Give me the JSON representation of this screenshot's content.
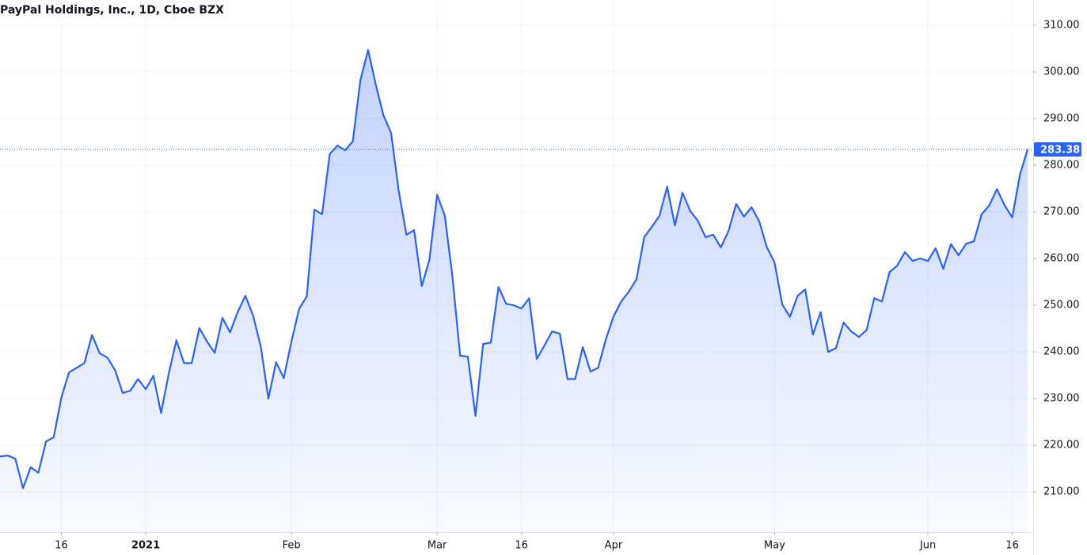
{
  "chart_data": {
    "type": "area",
    "title": "PayPal Holdings, Inc., 1D, Cboe BZX",
    "categories": [
      null,
      null,
      null,
      null,
      null,
      null,
      null,
      null,
      "16",
      null,
      null,
      null,
      null,
      null,
      null,
      null,
      null,
      null,
      null,
      "2021",
      null,
      null,
      null,
      null,
      null,
      null,
      null,
      null,
      null,
      null,
      null,
      null,
      null,
      null,
      null,
      null,
      null,
      null,
      "Feb",
      null,
      null,
      null,
      null,
      null,
      null,
      null,
      null,
      null,
      null,
      null,
      null,
      null,
      null,
      null,
      null,
      null,
      null,
      "Mar",
      null,
      null,
      null,
      null,
      null,
      null,
      null,
      null,
      null,
      null,
      "16",
      null,
      null,
      null,
      null,
      null,
      null,
      null,
      null,
      null,
      null,
      null,
      "Apr",
      null,
      null,
      null,
      null,
      null,
      null,
      null,
      null,
      null,
      null,
      null,
      null,
      null,
      null,
      null,
      null,
      null,
      null,
      null,
      null,
      "May",
      null,
      null,
      null,
      null,
      null,
      null,
      null,
      null,
      null,
      null,
      null,
      null,
      null,
      null,
      null,
      null,
      null,
      null,
      null,
      "Jun",
      null,
      null,
      null,
      null,
      null,
      null,
      null,
      null,
      null,
      null,
      "16",
      null,
      null
    ],
    "values": [
      217.6,
      217.8,
      217.1,
      210.8,
      215.3,
      214.1,
      220.8,
      221.7,
      230.2,
      235.6,
      236.6,
      237.6,
      243.6,
      239.7,
      238.8,
      236.1,
      231.2,
      231.7,
      234.2,
      232.0,
      234.9,
      226.9,
      235.3,
      242.5,
      237.6,
      237.6,
      245.1,
      242.2,
      239.8,
      247.3,
      244.2,
      248.6,
      252.0,
      247.8,
      241.2,
      230.0,
      237.8,
      234.4,
      242.2,
      249.2,
      251.9,
      270.5,
      269.5,
      282.4,
      284.2,
      283.2,
      285.1,
      298.3,
      304.7,
      297.3,
      290.7,
      286.9,
      274.4,
      265.1,
      266.1,
      254.1,
      259.8,
      273.7,
      269.2,
      256.1,
      239.2,
      239.0,
      226.3,
      241.7,
      242.0,
      253.9,
      250.3,
      250.0,
      249.3,
      251.5,
      238.5,
      241.4,
      244.4,
      243.9,
      234.2,
      234.2,
      241.0,
      235.8,
      236.6,
      242.7,
      247.6,
      250.8,
      252.9,
      255.6,
      264.6,
      266.8,
      269.2,
      275.4,
      267.1,
      274.1,
      270.2,
      268.1,
      264.6,
      265.1,
      262.4,
      265.9,
      271.7,
      269.0,
      271.0,
      268.0,
      262.4,
      259.2,
      250.2,
      247.5,
      252.0,
      253.4,
      243.7,
      248.5,
      240.0,
      240.8,
      246.3,
      244.4,
      243.2,
      244.7,
      251.5,
      250.8,
      257.1,
      258.5,
      261.4,
      259.5,
      260.0,
      259.5,
      262.2,
      257.8,
      263.1,
      260.7,
      263.2,
      263.7,
      269.5,
      271.4,
      274.9,
      271.4,
      268.8,
      278.0,
      283.38
    ],
    "color": "#2962ff",
    "ylim": [
      201.4,
      315.4
    ],
    "yticks": [
      {
        "value": 210,
        "label": "210.00"
      },
      {
        "value": 220,
        "label": "220.00"
      },
      {
        "value": 230,
        "label": "230.00"
      },
      {
        "value": 240,
        "label": "240.00"
      },
      {
        "value": 250,
        "label": "250.00"
      },
      {
        "value": 260,
        "label": "260.00"
      },
      {
        "value": 270,
        "label": "270.00"
      },
      {
        "value": 280,
        "label": "280.00"
      },
      {
        "value": 290,
        "label": "290.00"
      },
      {
        "value": 300,
        "label": "300.00"
      },
      {
        "value": 310,
        "label": "310.00"
      }
    ],
    "grid": true,
    "last_value_line": true
  }
}
